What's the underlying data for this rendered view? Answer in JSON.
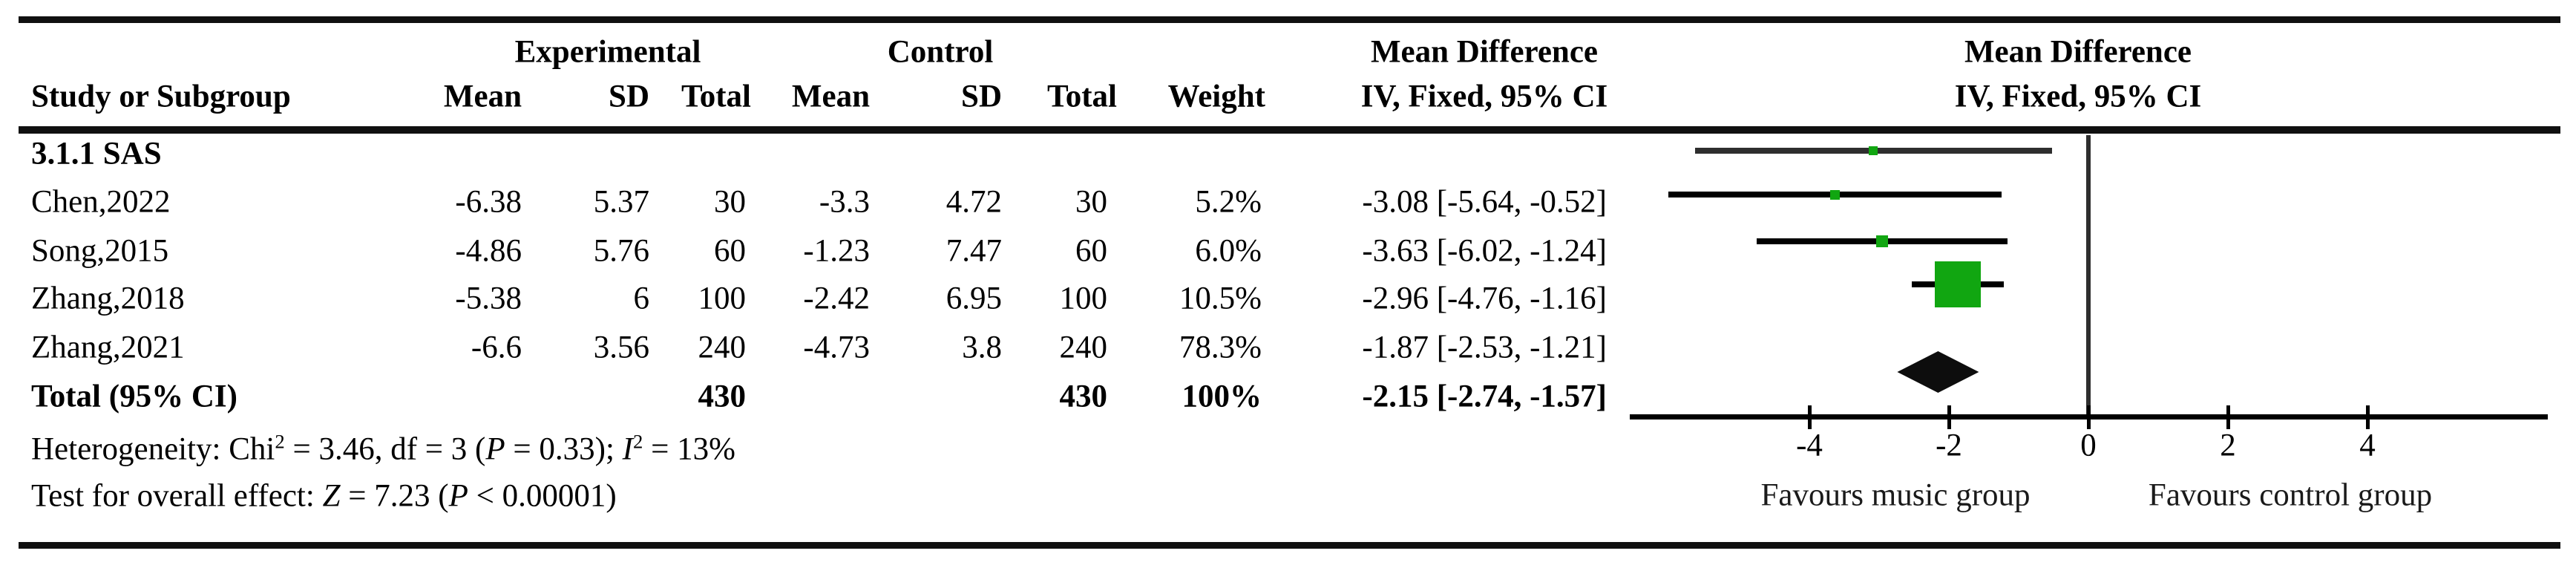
{
  "figure": {
    "headers": {
      "study": "Study or Subgroup",
      "experimental": "Experimental",
      "control": "Control",
      "mean": "Mean",
      "sd": "SD",
      "total": "Total",
      "weight": "Weight",
      "md_title": "Mean Difference",
      "md_subtitle": "IV, Fixed, 95% CI"
    },
    "subgroup": "3.1.1 SAS",
    "studies": [
      {
        "name": "Chen,2022",
        "mean_e": "-6.38",
        "sd_e": "5.37",
        "n_e": "30",
        "mean_c": "-3.3",
        "sd_c": "4.72",
        "n_c": "30",
        "weight": "5.2%",
        "ci_text": "-3.08 [-5.64, -0.52]"
      },
      {
        "name": "Song,2015",
        "mean_e": "-4.86",
        "sd_e": "5.76",
        "n_e": "60",
        "mean_c": "-1.23",
        "sd_c": "7.47",
        "n_c": "60",
        "weight": "6.0%",
        "ci_text": "-3.63 [-6.02, -1.24]"
      },
      {
        "name": "Zhang,2018",
        "mean_e": "-5.38",
        "sd_e": "6",
        "n_e": "100",
        "mean_c": "-2.42",
        "sd_c": "6.95",
        "n_c": "100",
        "weight": "10.5%",
        "ci_text": "-2.96 [-4.76, -1.16]"
      },
      {
        "name": "Zhang,2021",
        "mean_e": "-6.6",
        "sd_e": "3.56",
        "n_e": "240",
        "mean_c": "-4.73",
        "sd_c": "3.8",
        "n_c": "240",
        "weight": "78.3%",
        "ci_text": "-1.87 [-2.53, -1.21]"
      }
    ],
    "total": {
      "name": "Total (95% CI)",
      "n_e": "430",
      "n_c": "430",
      "weight": "100%",
      "ci_text": "-2.15 [-2.74, -1.57]"
    },
    "footnotes": {
      "heterogeneity": [
        {
          "t": "Heterogeneity: Chi"
        },
        {
          "t": "2",
          "sup": true
        },
        {
          "t": " = 3.46, df = 3 ("
        },
        {
          "t": "P",
          "i": true
        },
        {
          "t": " = 0.33); "
        },
        {
          "t": "I",
          "i": true
        },
        {
          "t": "2",
          "sup": true
        },
        {
          "t": " = 13%"
        }
      ],
      "overall": [
        {
          "t": "Test for overall effect: "
        },
        {
          "t": "Z",
          "i": true
        },
        {
          "t": " = 7.23 ("
        },
        {
          "t": "P",
          "i": true
        },
        {
          "t": " < 0.00001)"
        }
      ]
    }
  },
  "chart_data": {
    "type": "forest",
    "effect_measure": "Mean Difference, IV, Fixed, 95% CI",
    "x_ticks": [
      -4,
      -2,
      0,
      2,
      4
    ],
    "xlim": [
      -6.6,
      6.6
    ],
    "zero_line": 0,
    "x_label_left": "Favours music group",
    "x_label_right": "Favours control group",
    "marker_color": "#11A611",
    "studies": [
      {
        "name": "Chen,2022",
        "est": -3.08,
        "lo": -5.64,
        "hi": -0.52,
        "weight_pct": 5.2
      },
      {
        "name": "Song,2015",
        "est": -3.63,
        "lo": -6.02,
        "hi": -1.24,
        "weight_pct": 6.0
      },
      {
        "name": "Zhang,2018",
        "est": -2.96,
        "lo": -4.76,
        "hi": -1.16,
        "weight_pct": 10.5
      },
      {
        "name": "Zhang,2021",
        "est": -1.87,
        "lo": -2.53,
        "hi": -1.21,
        "weight_pct": 78.3
      }
    ],
    "overall": {
      "est": -2.15,
      "lo": -2.74,
      "hi": -1.57,
      "weight_pct": 100
    }
  }
}
